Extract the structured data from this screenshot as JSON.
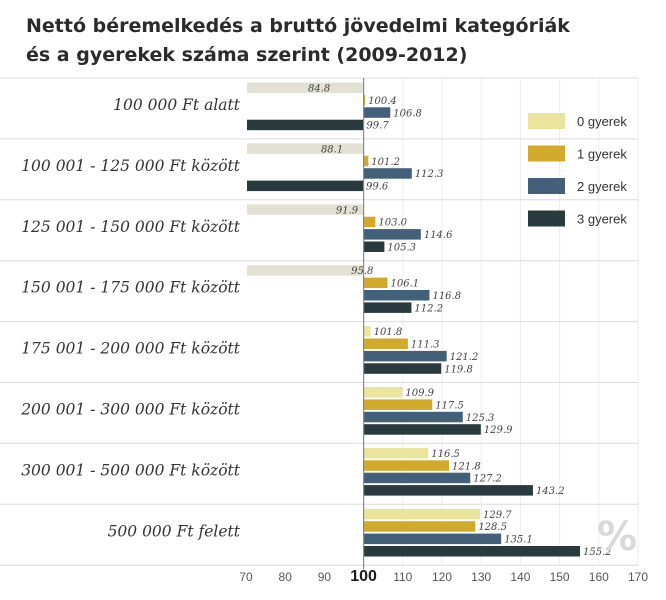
{
  "title_lines": [
    "Nettó béremelkedés a bruttó jövedelmi kategóriák",
    "és a gyerekek száma szerint (2009-2012)"
  ],
  "percent_mark": "%",
  "colors": {
    "0 gyerek": "#ebe49c",
    "1 gyerek": "#d2aa2b",
    "2 gyerek": "#426079",
    "3 gyerek": "#283a3e",
    "below_100": [
      "#e3e1d3",
      "#b3a788",
      "#555b5d",
      "#283a3e"
    ]
  },
  "chart_data": {
    "type": "bar",
    "orientation": "horizontal",
    "baseline": 100,
    "xlim": [
      70,
      170
    ],
    "xticks": [
      "70",
      "80",
      "90",
      "100",
      "110",
      "120",
      "130",
      "140",
      "150",
      "160",
      "170"
    ],
    "categories": [
      "100 000 Ft alatt",
      "100 001 - 125 000 Ft között",
      "125 001 - 150 000 Ft között",
      "150 001 - 175 000 Ft között",
      "175 001 - 200 000 Ft között",
      "200 001 - 300 000 Ft között",
      "300 001 - 500 000 Ft között",
      "500 000 Ft felett"
    ],
    "series": [
      {
        "name": "0 gyerek",
        "values": [
          84.8,
          88.1,
          91.9,
          95.8,
          101.8,
          109.9,
          116.5,
          129.7
        ],
        "labels": [
          "84.8",
          "88.1",
          "91.9",
          "95.8",
          "101.8",
          "109.9",
          "116.5",
          "129.7"
        ]
      },
      {
        "name": "1 gyerek",
        "values": [
          100.4,
          101.2,
          103.0,
          106.1,
          111.3,
          117.5,
          121.8,
          128.5
        ],
        "labels": [
          "100.4",
          "101.2",
          "103.0",
          "106.1",
          "111.3",
          "117.5",
          "121.8",
          "128.5"
        ]
      },
      {
        "name": "2 gyerek",
        "values": [
          106.8,
          112.3,
          114.6,
          116.8,
          121.2,
          125.3,
          127.2,
          135.1
        ],
        "labels": [
          "106.8",
          "112.3",
          "114.6",
          "116.8",
          "121.2",
          "125.3",
          "127.2",
          "135.1"
        ]
      },
      {
        "name": "3 gyerek",
        "values": [
          99.7,
          99.6,
          105.3,
          112.2,
          119.8,
          129.9,
          143.2,
          155.2
        ],
        "labels": [
          "99.7",
          "99.6",
          "105.3",
          "112.2",
          "119.8",
          "129.9",
          "143.2",
          "155.2"
        ]
      }
    ],
    "legend": [
      "0 gyerek",
      "1 gyerek",
      "2 gyerek",
      "3 gyerek"
    ],
    "legend_position": "top-right",
    "grid": true
  }
}
